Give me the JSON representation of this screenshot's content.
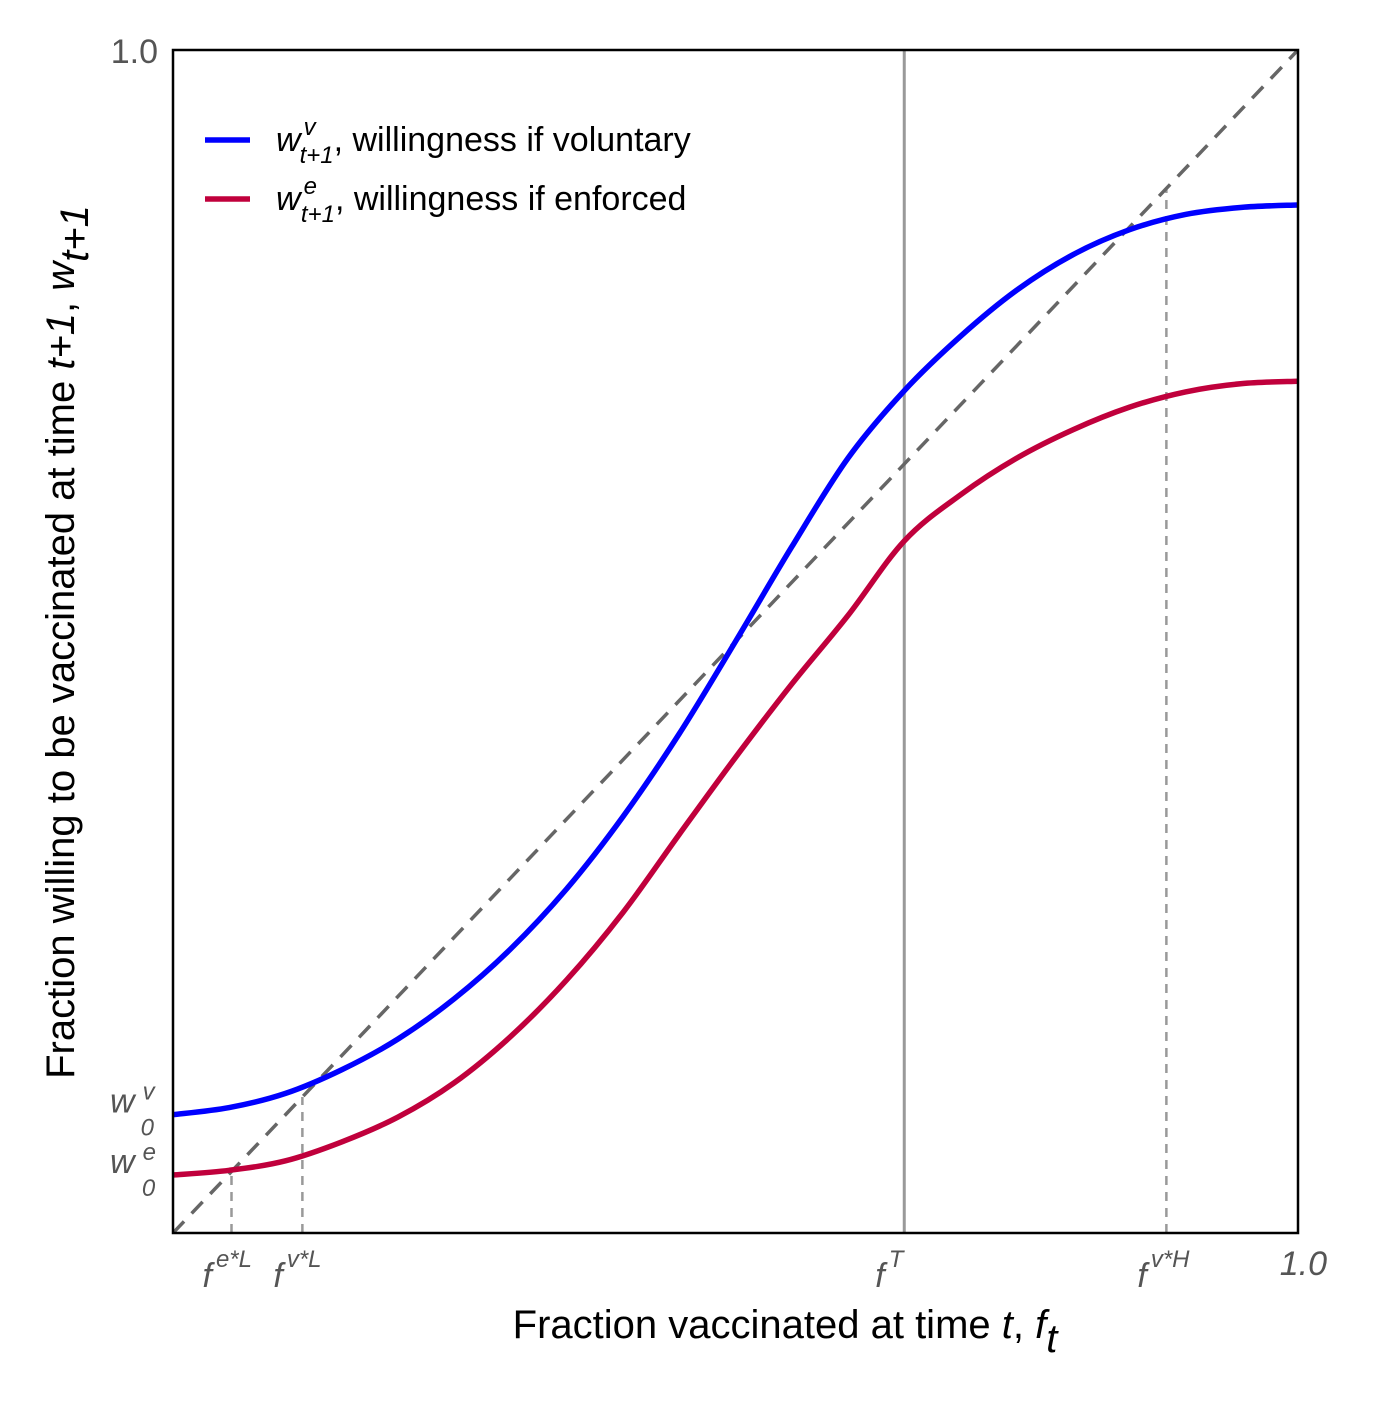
{
  "chart_data": {
    "type": "line",
    "x_axis": {
      "label": "Fraction vaccinated at time ",
      "label_var": "t",
      "label_sep": ", ",
      "label_sym": "f",
      "label_sym_sub": "t",
      "range": [
        0,
        1
      ],
      "end_label": "1.0",
      "ticks": [
        {
          "value": 0.052,
          "base": "f",
          "sup": "e*L"
        },
        {
          "value": 0.115,
          "base": "f",
          "sup": "v*L"
        },
        {
          "value": 0.65,
          "base": "f",
          "sup": "T"
        },
        {
          "value": 0.883,
          "base": "f",
          "sup": "v*H"
        }
      ]
    },
    "y_axis": {
      "label": "Fraction willing to be vaccinated at time ",
      "label_var": "t+1",
      "label_sep": ", ",
      "label_sym": "w",
      "label_sym_sub": "t+1",
      "range": [
        0,
        1
      ],
      "top_label": "1.0",
      "ticks": [
        {
          "value": 0.1,
          "base": "w",
          "sup": "v",
          "sub": "0"
        },
        {
          "value": 0.049,
          "base": "w",
          "sup": "e",
          "sub": "0"
        }
      ]
    },
    "series": [
      {
        "name": "voluntary",
        "legend_sym": "w",
        "legend_sup": "v",
        "legend_sub": "t+1",
        "legend_text": ", willingness if voluntary",
        "color": "#0000ff",
        "x": [
          0,
          0.05,
          0.1,
          0.15,
          0.2,
          0.25,
          0.3,
          0.35,
          0.4,
          0.45,
          0.5,
          0.55,
          0.6,
          0.65,
          0.7,
          0.75,
          0.8,
          0.85,
          0.9,
          0.95,
          1.0
        ],
        "y": [
          0.1,
          0.106,
          0.118,
          0.138,
          0.164,
          0.198,
          0.24,
          0.291,
          0.352,
          0.422,
          0.5,
          0.58,
          0.655,
          0.712,
          0.758,
          0.797,
          0.827,
          0.848,
          0.861,
          0.867,
          0.869
        ]
      },
      {
        "name": "enforced",
        "legend_sym": "w",
        "legend_sup": "e",
        "legend_sub": "t+1",
        "legend_text": ", willingness if enforced",
        "color": "#c0003c",
        "x": [
          0,
          0.05,
          0.1,
          0.15,
          0.2,
          0.25,
          0.3,
          0.35,
          0.4,
          0.45,
          0.5,
          0.55,
          0.6,
          0.65,
          0.7,
          0.75,
          0.8,
          0.85,
          0.9,
          0.95,
          1.0
        ],
        "y": [
          0.049,
          0.053,
          0.061,
          0.077,
          0.098,
          0.127,
          0.166,
          0.214,
          0.271,
          0.337,
          0.402,
          0.464,
          0.522,
          0.585,
          0.624,
          0.655,
          0.679,
          0.698,
          0.711,
          0.718,
          0.72
        ]
      }
    ],
    "reference_line": {
      "type": "diagonal",
      "style": "dashed",
      "color": "#666666"
    },
    "vertical_markers": [
      {
        "tick": "f^T",
        "x": 0.65,
        "style": "solid",
        "color": "#999999"
      },
      {
        "tick": "f^e*L",
        "x": 0.052,
        "y_to": 0.052,
        "style": "dashed",
        "color": "#999999"
      },
      {
        "tick": "f^v*L",
        "x": 0.115,
        "y_to": 0.115,
        "style": "dashed",
        "color": "#999999"
      },
      {
        "tick": "f^v*H",
        "x": 0.883,
        "y_to": 0.883,
        "style": "dashed",
        "color": "#999999"
      }
    ],
    "legend_position": "top-left",
    "grid": false
  }
}
